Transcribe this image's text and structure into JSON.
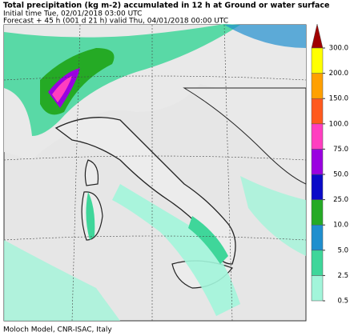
{
  "header": {
    "title": "Total precipitation (kg m-2) accumulated in  12 h at Ground or water surface",
    "initial_time": "Initial time  Tue, 02/01/2018  03:00 UTC",
    "forecast": "Forecast  +  45 h  (001 d 21 h)  valid Thu, 04/01/2018 00:00 UTC"
  },
  "colorbar": {
    "top_color": "#a00000",
    "levels": [
      {
        "label": "0.5",
        "color": "#a2f5da"
      },
      {
        "label": "2.5",
        "color": "#3fd69a"
      },
      {
        "label": "5.0",
        "color": "#1f8fce"
      },
      {
        "label": "10.0",
        "color": "#25aa25"
      },
      {
        "label": "25.0",
        "color": "#0a0ac8"
      },
      {
        "label": "50.0",
        "color": "#9a00e0"
      },
      {
        "label": "75.0",
        "color": "#ff3ec0"
      },
      {
        "label": "100.0",
        "color": "#ff5a1e"
      },
      {
        "label": "150.0",
        "color": "#ffa000"
      },
      {
        "label": "200.0",
        "color": "#ffff00"
      },
      {
        "label": "300.0"
      }
    ]
  },
  "footer": "Moloch Model, CNR-ISAC, Italy"
}
